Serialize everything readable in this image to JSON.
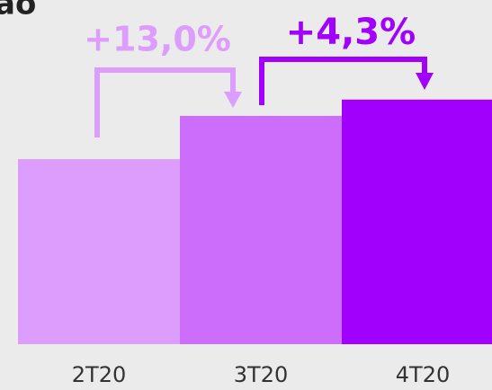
{
  "chart_data": {
    "type": "bar",
    "title": "ão",
    "categories": [
      "2T20",
      "3T20",
      "4T20"
    ],
    "values": [
      100,
      113,
      117.9
    ],
    "colors": [
      "#dd9dfd",
      "#cc6dfc",
      "#a100fc"
    ],
    "ylim": [
      44.4,
      130
    ],
    "annotations": [
      {
        "text": "+13,0%",
        "color": "#dd9dfd"
      },
      {
        "text": "+4,3%",
        "color": "#a100fc"
      }
    ]
  }
}
